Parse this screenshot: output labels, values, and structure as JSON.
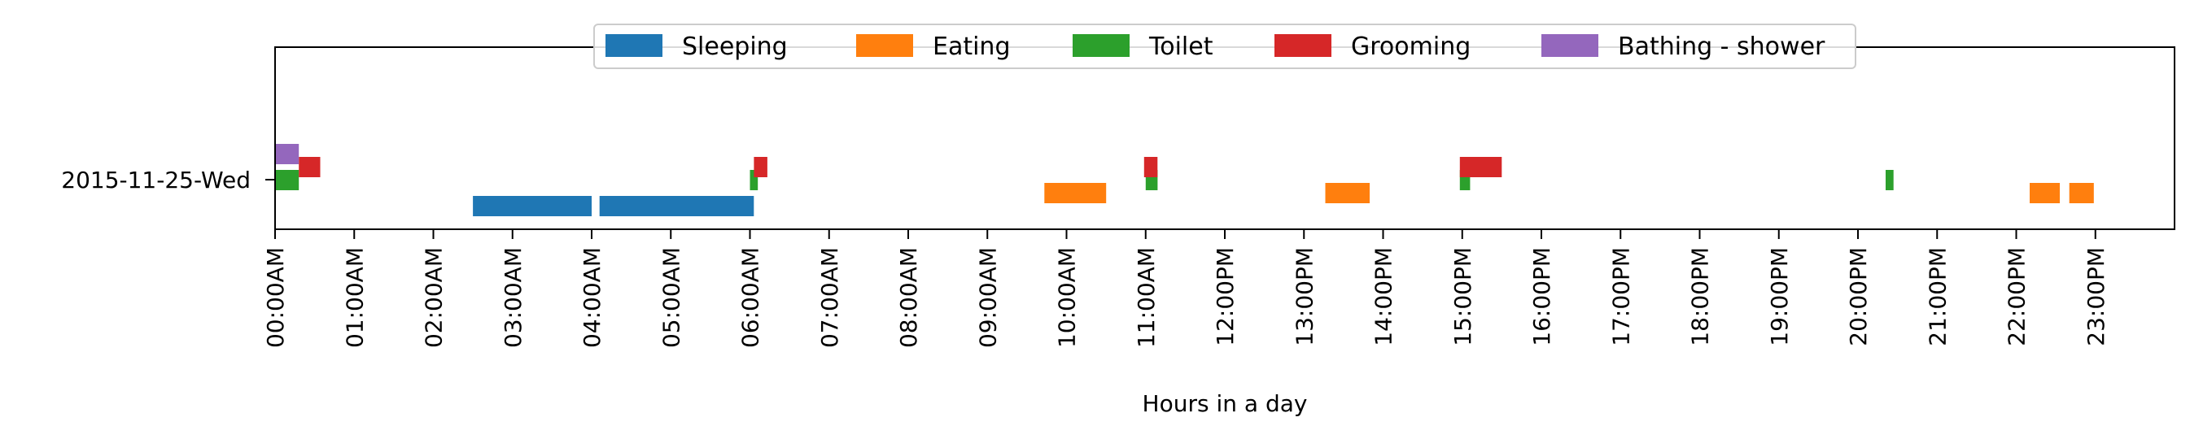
{
  "chart_data": {
    "type": "bar",
    "orientation": "horizontal-timeline",
    "xlabel": "Hours in a day",
    "ylabel": "",
    "xlim": [
      0,
      24
    ],
    "x_ticks": [
      "00:00AM",
      "01:00AM",
      "02:00AM",
      "03:00AM",
      "04:00AM",
      "05:00AM",
      "06:00AM",
      "07:00AM",
      "08:00AM",
      "09:00AM",
      "10:00AM",
      "11:00AM",
      "12:00PM",
      "13:00PM",
      "14:00PM",
      "15:00PM",
      "16:00PM",
      "17:00PM",
      "18:00PM",
      "19:00PM",
      "20:00PM",
      "21:00PM",
      "22:00PM",
      "23:00PM"
    ],
    "categories": [
      "2015-11-25-Wed"
    ],
    "grid": false,
    "legend_position": "top-center",
    "series": [
      {
        "name": "Sleeping",
        "color": "#1f77b4",
        "lane": 0,
        "intervals": [
          [
            2.5,
            4.0
          ],
          [
            4.1,
            6.05
          ]
        ]
      },
      {
        "name": "Eating",
        "color": "#ff7f0e",
        "lane": 1,
        "intervals": [
          [
            9.72,
            10.5
          ],
          [
            13.27,
            13.83
          ],
          [
            22.17,
            22.55
          ],
          [
            22.67,
            22.98
          ]
        ]
      },
      {
        "name": "Toilet",
        "color": "#2ca02c",
        "lane": 2,
        "intervals": [
          [
            0.0,
            0.3
          ],
          [
            6.0,
            6.1
          ],
          [
            11.0,
            11.15
          ],
          [
            14.97,
            15.1
          ],
          [
            20.35,
            20.45
          ]
        ]
      },
      {
        "name": "Grooming",
        "color": "#d62728",
        "lane": 3,
        "intervals": [
          [
            0.3,
            0.57
          ],
          [
            6.05,
            6.22
          ],
          [
            10.98,
            11.15
          ],
          [
            14.97,
            15.5
          ]
        ]
      },
      {
        "name": "Bathing - shower",
        "color": "#9467bd",
        "lane": 4,
        "intervals": [
          [
            0.0,
            0.3
          ]
        ]
      }
    ]
  }
}
